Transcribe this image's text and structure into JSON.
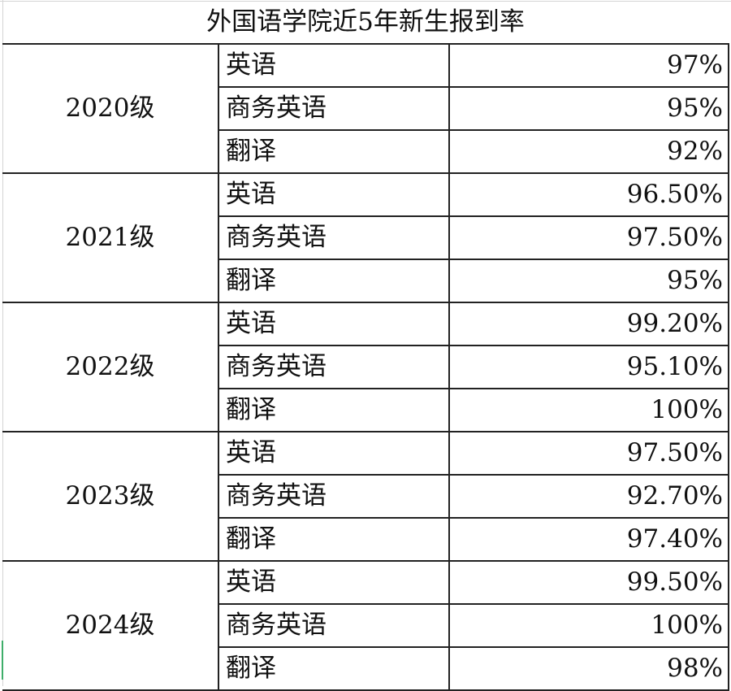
{
  "title": "外国语学院近5年新生报到率",
  "groups": [
    {
      "year": "2020级",
      "rows": [
        {
          "major": "英语",
          "rate": "97%"
        },
        {
          "major": "商务英语",
          "rate": "95%"
        },
        {
          "major": "翻译",
          "rate": "92%"
        }
      ]
    },
    {
      "year": "2021级",
      "rows": [
        {
          "major": "英语",
          "rate": "96.50%"
        },
        {
          "major": "商务英语",
          "rate": "97.50%"
        },
        {
          "major": "翻译",
          "rate": "95%"
        }
      ]
    },
    {
      "year": "2022级",
      "rows": [
        {
          "major": "英语",
          "rate": "99.20%"
        },
        {
          "major": "商务英语",
          "rate": "95.10%"
        },
        {
          "major": "翻译",
          "rate": "100%"
        }
      ]
    },
    {
      "year": "2023级",
      "rows": [
        {
          "major": "英语",
          "rate": "97.50%"
        },
        {
          "major": "商务英语",
          "rate": "92.70%"
        },
        {
          "major": "翻译",
          "rate": "97.40%"
        }
      ]
    },
    {
      "year": "2024级",
      "rows": [
        {
          "major": "英语",
          "rate": "99.50%"
        },
        {
          "major": "商务英语",
          "rate": "100%"
        },
        {
          "major": "翻译",
          "rate": "98%"
        }
      ]
    }
  ],
  "colors": {
    "border": "#222222",
    "gridline": "#d4d4d4",
    "selection": "#3fae6a"
  }
}
